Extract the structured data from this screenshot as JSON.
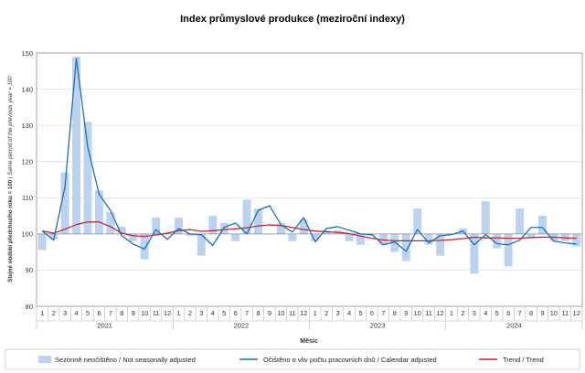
{
  "chart_data": {
    "type": "bar",
    "title": "Index průmyslové produkce (meziroční indexy)",
    "xlabel": "Měsíc",
    "ylabel_bold": "Stejné období předchozího roku = 100",
    "ylabel_sep": " | ",
    "ylabel_italic": "Same period of the previous year = 100",
    "ylim": [
      80,
      150
    ],
    "yticks": [
      "80",
      "90",
      "100",
      "110",
      "120",
      "130",
      "140",
      "150"
    ],
    "baseline": 100,
    "years": [
      "2021",
      "2022",
      "2023",
      "2024"
    ],
    "categories": [
      "1",
      "2",
      "3",
      "4",
      "5",
      "6",
      "7",
      "8",
      "9",
      "10",
      "11",
      "12",
      "1",
      "2",
      "3",
      "4",
      "5",
      "6",
      "7",
      "8",
      "9",
      "10",
      "11",
      "12",
      "1",
      "2",
      "3",
      "4",
      "5",
      "6",
      "7",
      "8",
      "9",
      "10",
      "11",
      "12",
      "1",
      "2",
      "3",
      "4",
      "5",
      "6",
      "7",
      "8",
      "9",
      "10",
      "11",
      "12"
    ],
    "series": [
      {
        "name": "Sezónně neočištěno / Not seasonally adjusted",
        "type": "bar",
        "color": "#bcd3ef",
        "values": [
          95.5,
          98.5,
          117,
          149,
          131,
          112,
          106,
          102,
          98,
          93,
          104.5,
          100,
          104.5,
          99.5,
          94,
          105,
          103,
          98,
          109.5,
          107,
          100,
          103,
          98,
          104,
          98,
          101,
          101,
          98,
          97,
          99.5,
          97,
          95,
          92.5,
          107,
          97,
          94,
          100,
          101.5,
          89,
          109,
          96,
          91,
          107,
          99,
          105,
          98,
          98,
          96.5
        ]
      },
      {
        "name": "Očištěno o vliv počtu pracovních dnů / Calendar adjusted",
        "type": "line",
        "color": "#1f6fb4",
        "values": [
          100.8,
          98.3,
          113,
          148.5,
          124,
          111,
          106.5,
          99.5,
          97.2,
          95.8,
          101.2,
          98.5,
          101.5,
          100,
          99.8,
          96.8,
          101.8,
          103,
          100,
          106.5,
          107.8,
          102.5,
          100.5,
          104.5,
          97.8,
          101.5,
          102,
          101,
          100,
          99.8,
          97,
          97.8,
          95.2,
          101.2,
          97.5,
          99.5,
          99.8,
          100.8,
          97,
          99.8,
          97.3,
          97,
          98.3,
          101.8,
          101.8,
          98,
          97.5,
          97.2
        ]
      },
      {
        "name": "Trend / Trend",
        "type": "line",
        "color": "#c0282e",
        "values": [
          100.8,
          100.2,
          101.3,
          102.6,
          103.3,
          103.3,
          102,
          100.2,
          99.5,
          99.3,
          99.7,
          100.2,
          100.9,
          101.2,
          100.7,
          100.9,
          101.2,
          101.4,
          101.7,
          102.2,
          102.5,
          102.3,
          101.8,
          101.2,
          100.8,
          100.6,
          100.4,
          100.1,
          99.4,
          98.8,
          98.3,
          98.1,
          98.1,
          98.1,
          98.1,
          98.2,
          98.4,
          98.7,
          99.1,
          98.9,
          98.9,
          98.8,
          98.8,
          99,
          99.1,
          99.1,
          98.9,
          98.8
        ]
      }
    ],
    "legend_position": "bottom"
  }
}
